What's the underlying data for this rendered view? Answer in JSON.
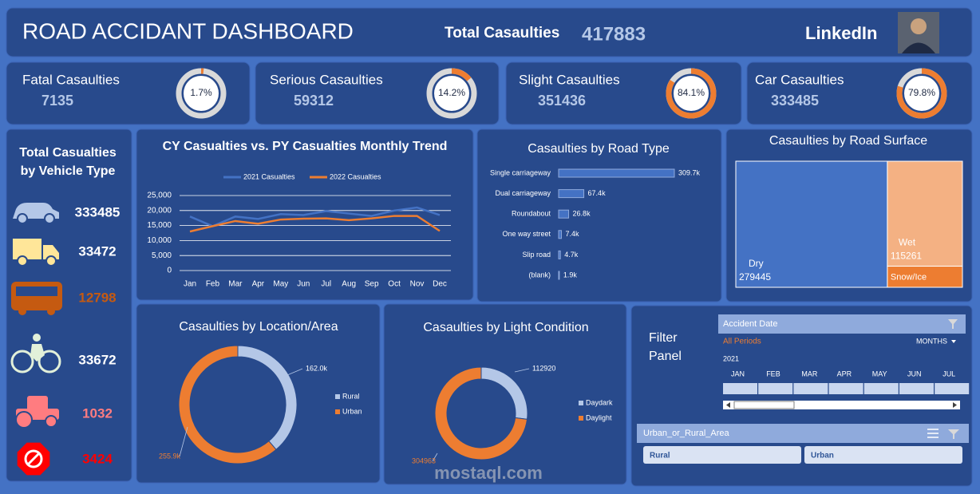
{
  "header": {
    "title": "ROAD ACCIDANT DASHBOARD",
    "total_label": "Total Casaulties",
    "total_value": 417883,
    "linkedin": "LinkedIn"
  },
  "kpis": [
    {
      "label": "Fatal Casaulties",
      "value": 7135,
      "share": 1.7,
      "share_label": "1.7%"
    },
    {
      "label": "Serious Casaulties",
      "value": 59312,
      "share": 14.2,
      "share_label": "14.2%"
    },
    {
      "label": "Slight Casaulties",
      "value": 351436,
      "share": 84.1,
      "share_label": "84.1%"
    },
    {
      "label": "Car Casaulties",
      "value": 333485,
      "share": 79.8,
      "share_label": "79.8%"
    }
  ],
  "vehicles": {
    "title_lines": [
      "Total Casualties",
      "by Vehicle Type"
    ],
    "items": [
      {
        "value": 333485,
        "color": "#b4c7e7",
        "label_color": "#ffffff"
      },
      {
        "value": 33472,
        "color": "#ffe699",
        "label_color": "#ffffff"
      },
      {
        "value": 12798,
        "color": "#c55a11",
        "label_color": "#c55a11"
      },
      {
        "value": 33672,
        "color": "#e2f0d9",
        "label_color": "#ffffff"
      },
      {
        "value": 1032,
        "color": "#ff7c80",
        "label_color": "#ff7c80"
      },
      {
        "value": 3424,
        "color": "#ff0000",
        "label_color": "#ff0000"
      }
    ]
  },
  "chart_data": [
    {
      "type": "line",
      "title": "CY Casualties vs. PY Casualties Monthly Trend",
      "categories": [
        "Jan",
        "Feb",
        "Mar",
        "Apr",
        "May",
        "Jun",
        "Jul",
        "Aug",
        "Sep",
        "Oct",
        "Nov",
        "Dec"
      ],
      "series": [
        {
          "name": "2021 Casualties",
          "color": "#4472c4",
          "values": [
            18000,
            14800,
            18000,
            17200,
            18800,
            18500,
            19800,
            19000,
            18200,
            20000,
            21000,
            18500
          ]
        },
        {
          "name": "2022 Casualties",
          "color": "#ed7d31",
          "values": [
            13000,
            14800,
            16500,
            15600,
            17000,
            17300,
            17400,
            16800,
            17400,
            18200,
            18200,
            13200
          ]
        }
      ],
      "ylim": [
        0,
        25000
      ],
      "yticks": [
        0,
        {
          "value": 5000,
          "label": "5,000"
        },
        {
          "value": 10000,
          "label": "10,000"
        },
        {
          "value": 15000,
          "label": "15,000"
        },
        {
          "value": 20000,
          "label": "20,000"
        },
        {
          "value": 25000,
          "label": "25,000"
        }
      ],
      "grid": true
    },
    {
      "type": "hbar",
      "title": "Casaulties by Road Type",
      "color": "#4472c4",
      "categories": [
        "Single carriageway",
        "Dual carriageway",
        "Roundabout",
        "One way street",
        "Slip road",
        "(blank)"
      ],
      "values": [
        309.7,
        67.4,
        26.8,
        7.4,
        4.7,
        1.9
      ],
      "value_labels": [
        "309.7k",
        "67.4k",
        "26.8k",
        "7.4k",
        "4.7k",
        "1.9k"
      ]
    },
    {
      "type": "treemap",
      "title": "Casaulties by Road Surface",
      "categories": [
        "Dry",
        "Wet",
        "Snow/Ice"
      ],
      "values": [
        279445,
        115261,
        23177
      ],
      "value_labels": [
        "279445",
        "115261",
        null
      ],
      "colors": [
        "#4472c4",
        "#f4b183",
        "#ed7d31"
      ]
    },
    {
      "type": "donut",
      "title": "Casaulties by Location/Area",
      "categories": [
        "Rural",
        "Urban"
      ],
      "values": [
        162.0,
        255.9
      ],
      "value_labels": [
        "162.0k",
        "255.9k"
      ],
      "colors": [
        "#b4c7e7",
        "#ed7d31"
      ]
    },
    {
      "type": "donut",
      "title": "Casaulties by Light Condition",
      "categories": [
        "Daydark",
        "Daylight"
      ],
      "values": [
        112920,
        304963
      ],
      "colors": [
        "#b4c7e7",
        "#ed7d31"
      ]
    }
  ],
  "filter_panel": {
    "title_lines": [
      "Filter",
      "Panel"
    ],
    "date_header": "Accident Date",
    "period": "All Periods",
    "level": "MONTHS",
    "year": "2021",
    "months": [
      "JAN",
      "FEB",
      "MAR",
      "APR",
      "MAY",
      "JUN",
      "JUL"
    ],
    "area_header": "Urban_or_Rural_Area",
    "options": [
      "Rural",
      "Urban"
    ]
  },
  "watermark": "mostaql.com"
}
